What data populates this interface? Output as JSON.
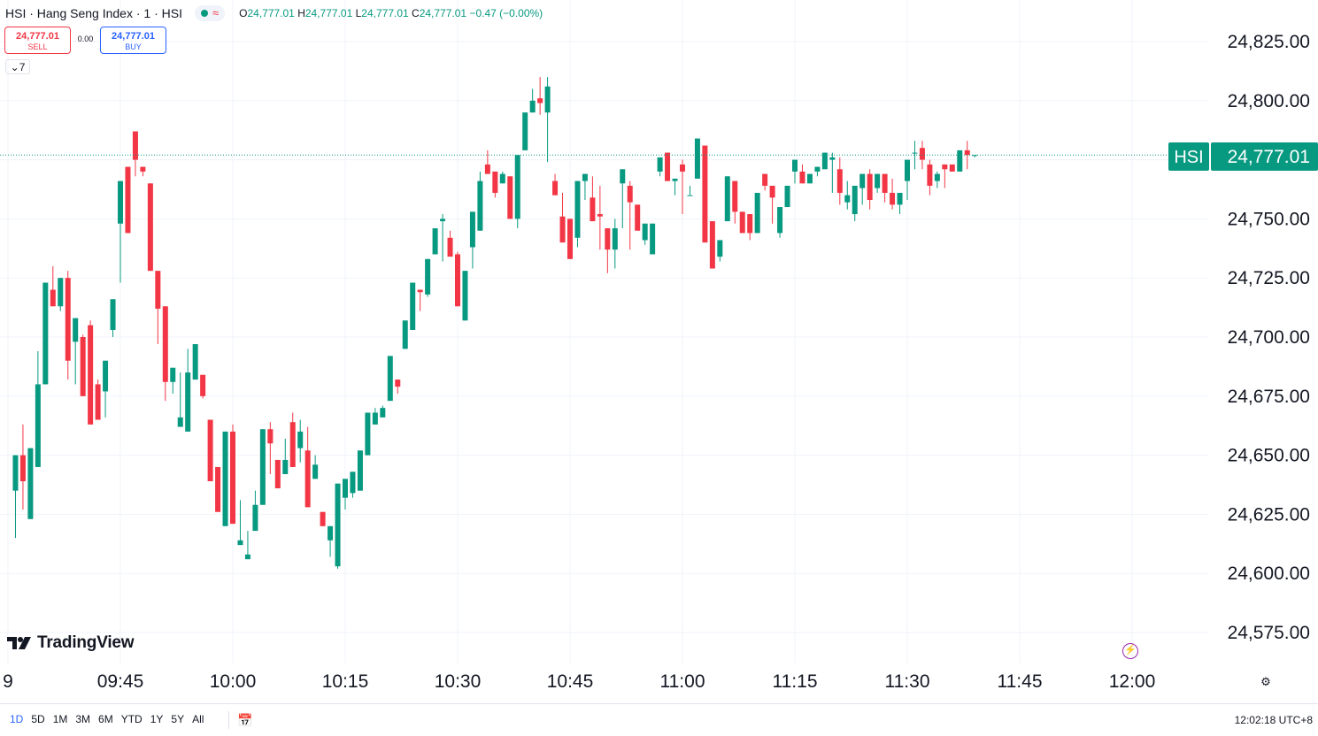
{
  "header": {
    "symbol_title": "HSI · Hang Seng Index · 1 · HSI",
    "ohlc": {
      "o_label": "O",
      "o_value": "24,777.01",
      "h_label": "H",
      "h_value": "24,777.01",
      "l_label": "L",
      "l_value": "24,777.01",
      "c_label": "C",
      "c_value": "24,777.01",
      "change": "−0.47 (−0.00%)"
    }
  },
  "trade": {
    "sell_price": "24,777.01",
    "sell_label": "SELL",
    "spread": "0.00",
    "buy_price": "24,777.01",
    "buy_label": "BUY"
  },
  "indicator_toggle": "7",
  "brand": "TradingView",
  "last_price_tag": {
    "symbol": "HSI",
    "price": "24,777.01"
  },
  "bottom_bar": {
    "ranges": [
      "1D",
      "5D",
      "1M",
      "3M",
      "6M",
      "YTD",
      "1Y",
      "5Y",
      "All"
    ],
    "active_range": "1D",
    "clock": "12:02:18 UTC+8"
  },
  "colors": {
    "up": "#089981",
    "down": "#f23645",
    "grid": "#f0f3fa",
    "accent": "#2962ff"
  },
  "chart_data": {
    "type": "candlestick",
    "x_tick_labels": [
      "9",
      "09:45",
      "10:00",
      "10:15",
      "10:30",
      "10:45",
      "11:00",
      "11:15",
      "11:30",
      "11:45",
      "12:00"
    ],
    "x_tick_times": [
      "09:30",
      "09:45",
      "10:00",
      "10:15",
      "10:30",
      "10:45",
      "11:00",
      "11:15",
      "11:30",
      "11:45",
      "12:00"
    ],
    "y_tick_labels": [
      "24,825.00",
      "24,800.00",
      "24,775.00",
      "24,750.00",
      "24,725.00",
      "24,700.00",
      "24,675.00",
      "24,650.00",
      "24,625.00",
      "24,600.00",
      "24,575.00"
    ],
    "y_tick_values": [
      24825,
      24800,
      24775,
      24750,
      24725,
      24700,
      24675,
      24650,
      24625,
      24600,
      24575
    ],
    "ylim": [
      24565,
      24835
    ],
    "last_price": 24777.01,
    "candle_fields": [
      "open",
      "high",
      "low",
      "close"
    ],
    "first_candle_time": "09:31",
    "interval_minutes": 1,
    "candles": [
      [
        24635,
        24640,
        24615,
        24650
      ],
      [
        24650,
        24663,
        24627,
        24639
      ],
      [
        24623,
        24626,
        24627,
        24653
      ],
      [
        24645,
        24645,
        24694,
        24680
      ],
      [
        24680,
        24681,
        24697,
        24723
      ],
      [
        24720,
        24730,
        24730,
        24713
      ],
      [
        24713,
        24711,
        24714,
        24725
      ],
      [
        24725,
        24728,
        24682,
        24690
      ],
      [
        24698,
        24698,
        24680,
        24708
      ],
      [
        24700,
        24701,
        24685,
        24675
      ],
      [
        24705,
        24707,
        24680,
        24663
      ],
      [
        24680,
        24682,
        24670,
        24665
      ],
      [
        24677,
        24677,
        24666,
        24690
      ],
      [
        24703,
        24700,
        24702,
        24716
      ],
      [
        24748,
        24723,
        24727,
        24766
      ],
      [
        24772,
        24772,
        24756,
        24744
      ],
      [
        24787,
        24787,
        24768,
        24775
      ],
      [
        24772,
        24770,
        24768,
        24770
      ],
      [
        24765,
        24765,
        24732,
        24728
      ],
      [
        24728,
        24728,
        24697,
        24712
      ],
      [
        24713,
        24713,
        24673,
        24681
      ],
      [
        24681,
        24682,
        24676,
        24687
      ],
      [
        24662,
        24685,
        24682,
        24666
      ],
      [
        24660,
        24695,
        24663,
        24685
      ],
      [
        24682,
        24693,
        24692,
        24697
      ],
      [
        24684,
        24674,
        24680,
        24675
      ],
      [
        24665,
        24660,
        24655,
        24639
      ],
      [
        24645,
        24635,
        24632,
        24626
      ],
      [
        24620,
        24631,
        24627,
        24660
      ],
      [
        24660,
        24663,
        24648,
        24621
      ],
      [
        24612,
        24631,
        24630,
        24614
      ],
      [
        24606,
        24618,
        24613,
        24608
      ],
      [
        24618,
        24620,
        24635,
        24629
      ],
      [
        24629,
        24636,
        24649,
        24661
      ],
      [
        24661,
        24664,
        24642,
        24655
      ],
      [
        24648,
        24647,
        24647,
        24636
      ],
      [
        24642,
        24644,
        24657,
        24648
      ],
      [
        24664,
        24668,
        24668,
        24645
      ],
      [
        24653,
        24665,
        24647,
        24660
      ],
      [
        24652,
        24662,
        24635,
        24628
      ],
      [
        24640,
        24650,
        24640,
        24646
      ],
      [
        24626,
        24620,
        24620,
        24620
      ],
      [
        24614,
        24614,
        24607,
        24620
      ],
      [
        24603,
        24602,
        24608,
        24638
      ],
      [
        24632,
        24638,
        24627,
        24640
      ],
      [
        24634,
        24632,
        24633,
        24643
      ],
      [
        24635,
        24650,
        24635,
        24652
      ],
      [
        24650,
        24664,
        24657,
        24668
      ],
      [
        24663,
        24670,
        24664,
        24668
      ],
      [
        24666,
        24671,
        24667,
        24670
      ],
      [
        24673,
        24690,
        24681,
        24692
      ],
      [
        24682,
        24682,
        24676,
        24679
      ],
      [
        24695,
        24702,
        24696,
        24707
      ],
      [
        24703,
        24717,
        24708,
        24723
      ],
      [
        24720,
        24720,
        24711,
        24719
      ],
      [
        24718,
        24723,
        24717,
        24733
      ],
      [
        24735,
        24744,
        24738,
        24746
      ],
      [
        24749,
        24752,
        24732,
        24750
      ],
      [
        24742,
        24745,
        24743,
        24734
      ],
      [
        24735,
        24736,
        24715,
        24713
      ],
      [
        24707,
        24727,
        24718,
        24728
      ],
      [
        24738,
        24733,
        24729,
        24753
      ],
      [
        24745,
        24749,
        24770,
        24766
      ],
      [
        24773,
        24779,
        24773,
        24769
      ],
      [
        24770,
        24766,
        24759,
        24761
      ],
      [
        24765,
        24767,
        24770,
        24769
      ],
      [
        24768,
        24764,
        24761,
        24750
      ],
      [
        24750,
        24746,
        24761,
        24777
      ],
      [
        24779,
        24791,
        24781,
        24795
      ],
      [
        24795,
        24805,
        24797,
        24800
      ],
      [
        24801,
        24810,
        24794,
        24799
      ],
      [
        24795,
        24810,
        24774,
        24806
      ],
      [
        24766,
        24769,
        24760,
        24760
      ],
      [
        24751,
        24761,
        24751,
        24740
      ],
      [
        24750,
        24750,
        24740,
        24733
      ],
      [
        24742,
        24738,
        24752,
        24766
      ],
      [
        24766,
        24768,
        24758,
        24769
      ],
      [
        24759,
        24768,
        24757,
        24749
      ],
      [
        24752,
        24764,
        24737,
        24751
      ],
      [
        24746,
        24744,
        24727,
        24737
      ],
      [
        24737,
        24750,
        24729,
        24746
      ],
      [
        24765,
        24766,
        24746,
        24771
      ],
      [
        24764,
        24766,
        24737,
        24757
      ],
      [
        24756,
        24752,
        24745,
        24745
      ],
      [
        24741,
        24746,
        24739,
        24748
      ],
      [
        24735,
        24738,
        24744,
        24748
      ],
      [
        24770,
        24768,
        24770,
        24776
      ],
      [
        24778,
        24775,
        24770,
        24766
      ],
      [
        24766,
        24763,
        24760,
        24767
      ],
      [
        24773,
        24775,
        24752,
        24770
      ],
      [
        24760,
        24761,
        24764,
        24760
      ],
      [
        24767,
        24782,
        24769,
        24784
      ],
      [
        24781,
        24781,
        24751,
        24740
      ],
      [
        24749,
        24749,
        24739,
        24729
      ],
      [
        24734,
        24734,
        24732,
        24741
      ],
      [
        24749,
        24759,
        24765,
        24768
      ],
      [
        24766,
        24748,
        24759,
        24753
      ],
      [
        24753,
        24753,
        24744,
        24744
      ],
      [
        24752,
        24752,
        24741,
        24744
      ],
      [
        24744,
        24745,
        24750,
        24761
      ],
      [
        24769,
        24762,
        24765,
        24764
      ],
      [
        24764,
        24762,
        24748,
        24759
      ],
      [
        24744,
        24742,
        24749,
        24755
      ],
      [
        24755,
        24758,
        24763,
        24764
      ],
      [
        24770,
        24770,
        24765,
        24775
      ],
      [
        24770,
        24773,
        24767,
        24765
      ],
      [
        24765,
        24767,
        24766,
        24769
      ],
      [
        24770,
        24771,
        24768,
        24772
      ],
      [
        24771,
        24774,
        24772,
        24778
      ],
      [
        24775,
        24778,
        24761,
        24776
      ],
      [
        24771,
        24776,
        24756,
        24761
      ],
      [
        24757,
        24766,
        24754,
        24760
      ],
      [
        24752,
        24752,
        24749,
        24764
      ],
      [
        24763,
        24769,
        24756,
        24769
      ],
      [
        24769,
        24771,
        24754,
        24758
      ],
      [
        24763,
        24761,
        24763,
        24769
      ],
      [
        24769,
        24768,
        24757,
        24761
      ],
      [
        24761,
        24767,
        24754,
        24756
      ],
      [
        24756,
        24753,
        24752,
        24761
      ],
      [
        24766,
        24768,
        24758,
        24775
      ],
      [
        24778,
        24783,
        24771,
        24778
      ],
      [
        24780,
        24783,
        24771,
        24775
      ],
      [
        24773,
        24775,
        24760,
        24764
      ],
      [
        24766,
        24770,
        24763,
        24769
      ],
      [
        24773,
        24770,
        24763,
        24771
      ],
      [
        24773,
        24771,
        24773,
        24770
      ],
      [
        24770,
        24776,
        24773,
        24779
      ],
      [
        24779,
        24783,
        24771,
        24777
      ],
      [
        24777,
        24776,
        24777,
        24777
      ]
    ]
  }
}
